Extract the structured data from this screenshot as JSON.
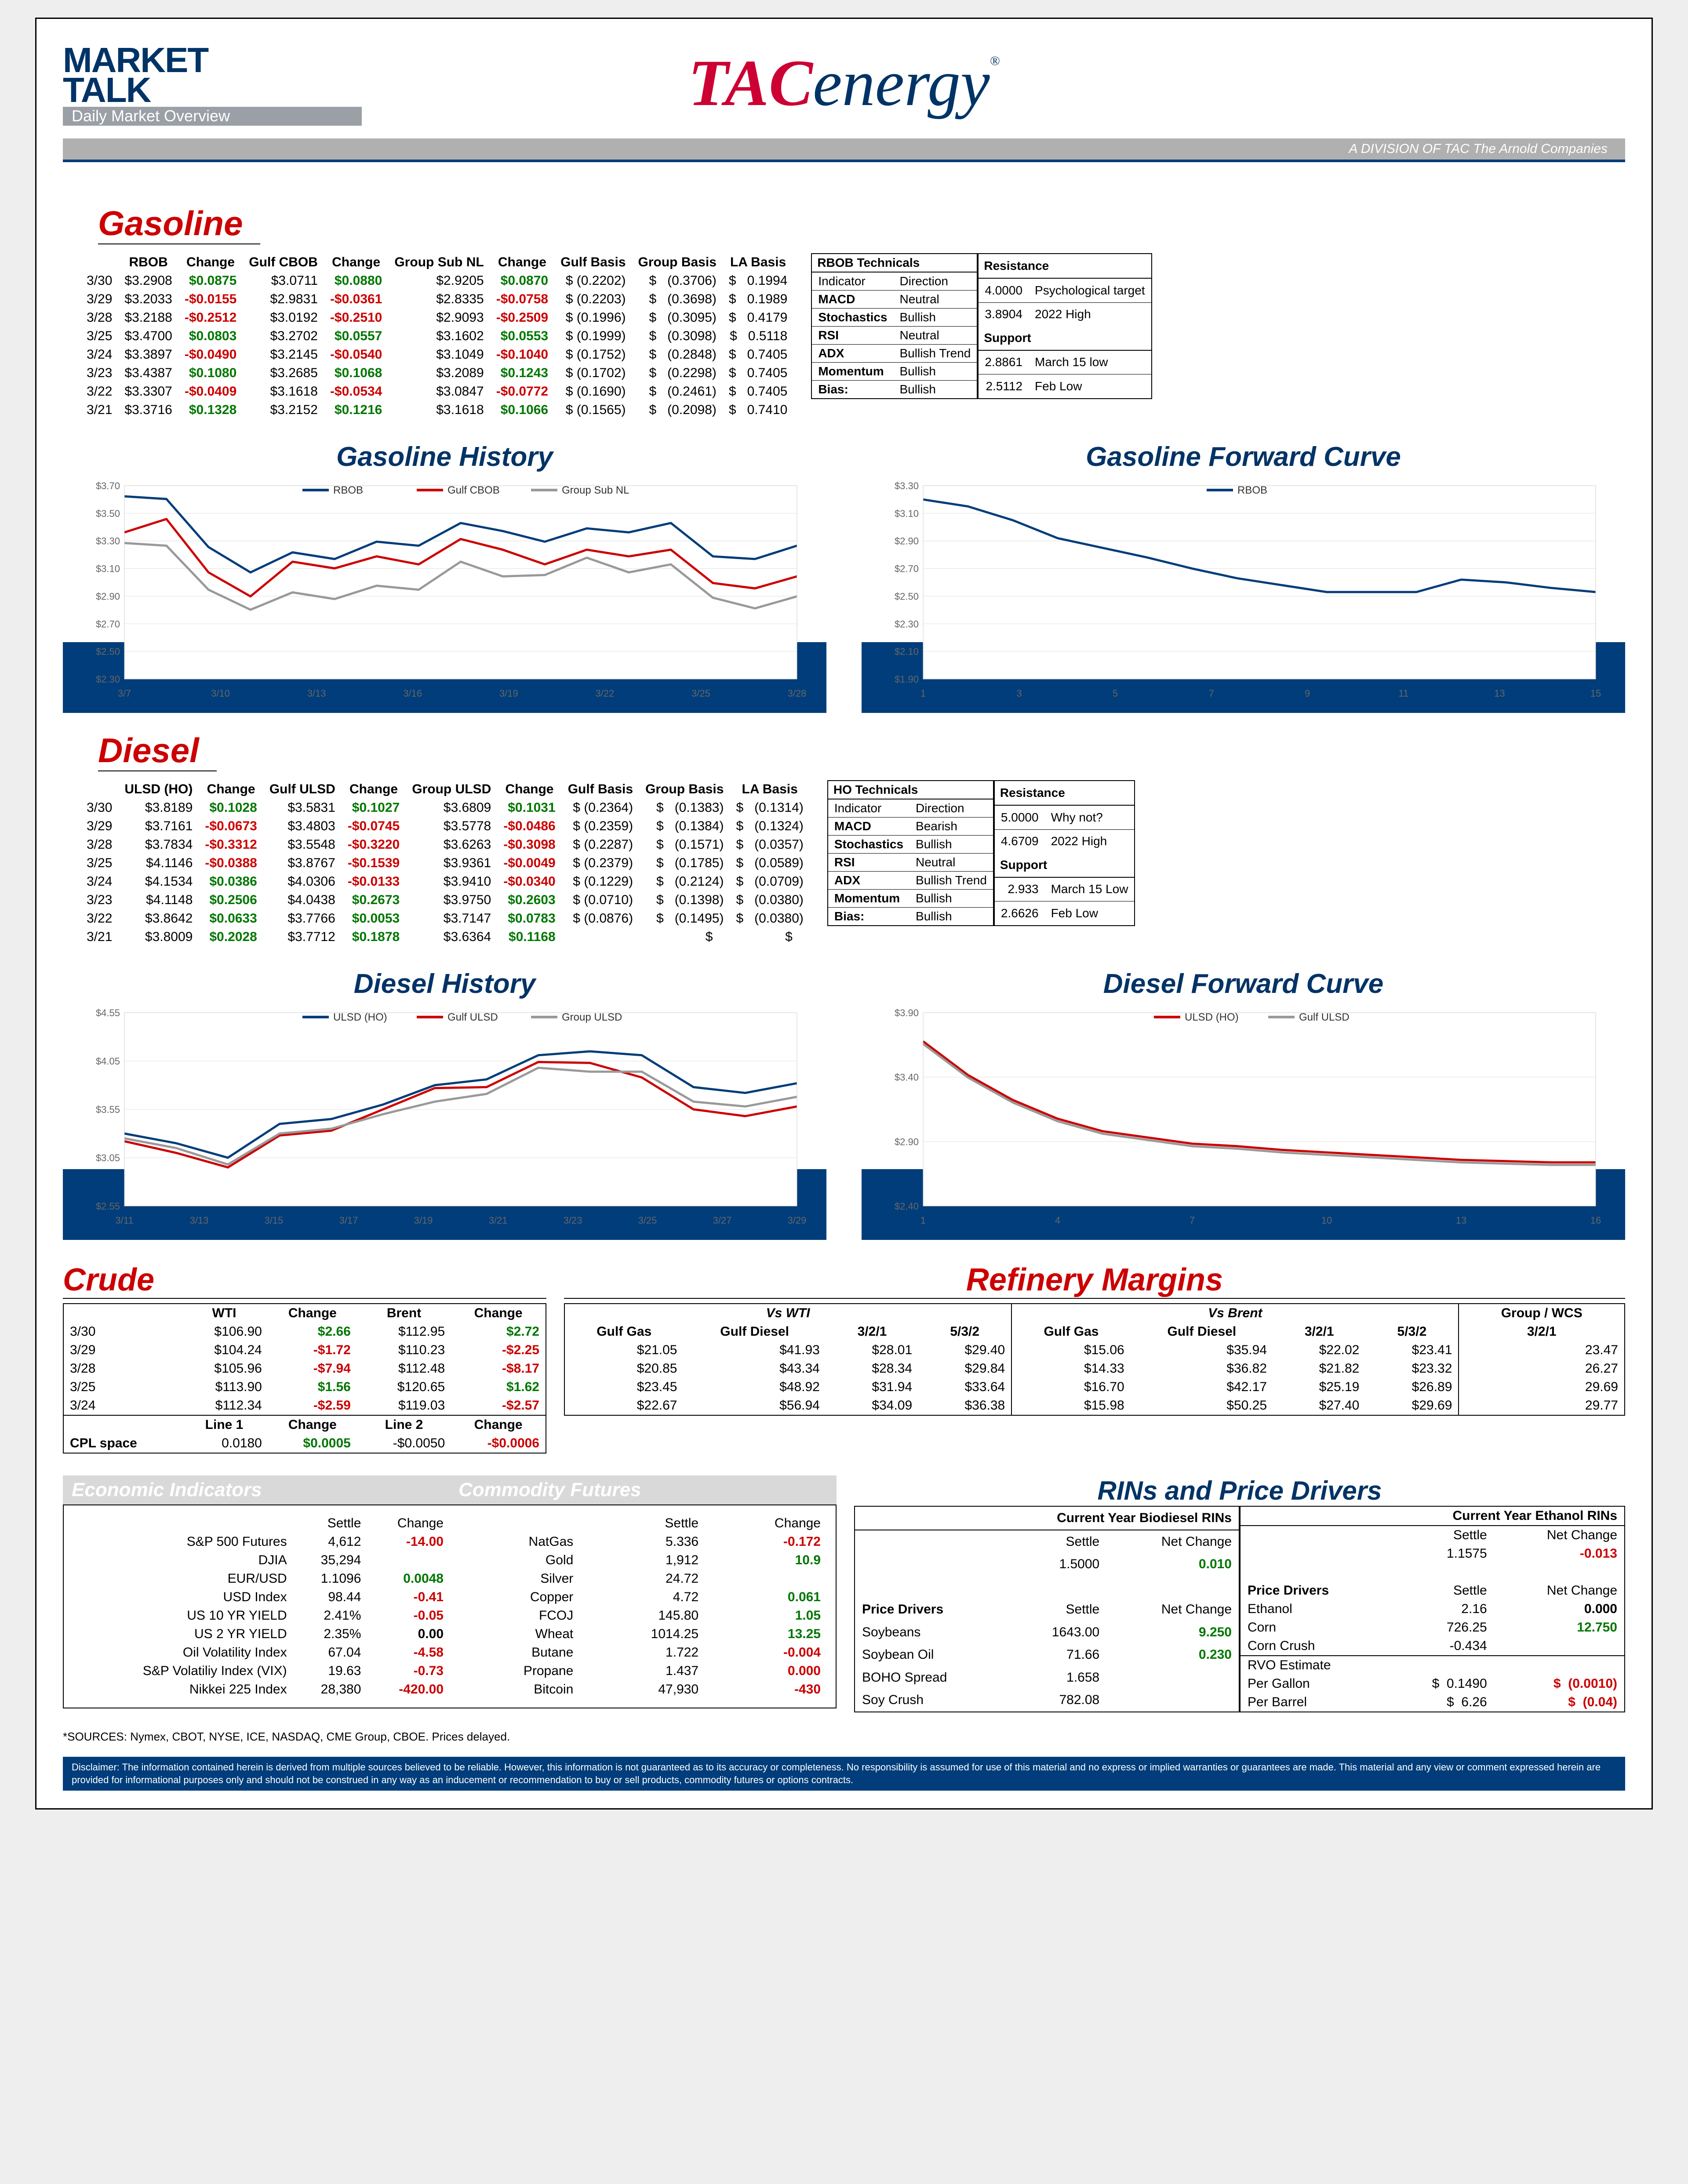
{
  "header": {
    "market": "MARKET",
    "talk": "TALK",
    "daily": "Daily Market Overview",
    "tac_t": "TAC",
    "tac_rest": "energy",
    "division": "A DIVISION OF TAC The Arnold Companies"
  },
  "gasoline": {
    "title": "Gasoline",
    "columns": [
      "",
      "RBOB",
      "Change",
      "Gulf CBOB",
      "Change",
      "Group Sub NL",
      "Change",
      "Gulf Basis",
      "Group Basis",
      "LA Basis"
    ],
    "rows": [
      {
        "d": "3/30",
        "rbob": "$3.2908",
        "c1": "$0.0875",
        "cbob": "$3.0711",
        "c2": "$0.0880",
        "grp": "$2.9205",
        "c3": "$0.0870",
        "gb": "$ (0.2202)",
        "grb": "(0.3706)",
        "la": "0.1994",
        "p1": 1,
        "p2": 1,
        "p3": 1
      },
      {
        "d": "3/29",
        "rbob": "$3.2033",
        "c1": "-$0.0155",
        "cbob": "$2.9831",
        "c2": "-$0.0361",
        "grp": "$2.8335",
        "c3": "-$0.0758",
        "gb": "$ (0.2203)",
        "grb": "(0.3698)",
        "la": "0.1989",
        "p1": 0,
        "p2": 0,
        "p3": 0
      },
      {
        "d": "3/28",
        "rbob": "$3.2188",
        "c1": "-$0.2512",
        "cbob": "$3.0192",
        "c2": "-$0.2510",
        "grp": "$2.9093",
        "c3": "-$0.2509",
        "gb": "$ (0.1996)",
        "grb": "(0.3095)",
        "la": "0.4179",
        "p1": 0,
        "p2": 0,
        "p3": 0
      },
      {
        "d": "3/25",
        "rbob": "$3.4700",
        "c1": "$0.0803",
        "cbob": "$3.2702",
        "c2": "$0.0557",
        "grp": "$3.1602",
        "c3": "$0.0553",
        "gb": "$ (0.1999)",
        "grb": "(0.3098)",
        "la": "0.5118",
        "p1": 1,
        "p2": 1,
        "p3": 1
      },
      {
        "d": "3/24",
        "rbob": "$3.3897",
        "c1": "-$0.0490",
        "cbob": "$3.2145",
        "c2": "-$0.0540",
        "grp": "$3.1049",
        "c3": "-$0.1040",
        "gb": "$ (0.1752)",
        "grb": "(0.2848)",
        "la": "0.7405",
        "p1": 0,
        "p2": 0,
        "p3": 0
      },
      {
        "d": "3/23",
        "rbob": "$3.4387",
        "c1": "$0.1080",
        "cbob": "$3.2685",
        "c2": "$0.1068",
        "grp": "$3.2089",
        "c3": "$0.1243",
        "gb": "$ (0.1702)",
        "grb": "(0.2298)",
        "la": "0.7405",
        "p1": 1,
        "p2": 1,
        "p3": 1
      },
      {
        "d": "3/22",
        "rbob": "$3.3307",
        "c1": "-$0.0409",
        "cbob": "$3.1618",
        "c2": "-$0.0534",
        "grp": "$3.0847",
        "c3": "-$0.0772",
        "gb": "$ (0.1690)",
        "grb": "(0.2461)",
        "la": "0.7405",
        "p1": 0,
        "p2": 0,
        "p3": 0
      },
      {
        "d": "3/21",
        "rbob": "$3.3716",
        "c1": "$0.1328",
        "cbob": "$3.2152",
        "c2": "$0.1216",
        "grp": "$3.1618",
        "c3": "$0.1066",
        "gb": "$ (0.1565)",
        "grb": "(0.2098)",
        "la": "0.7410",
        "p1": 1,
        "p2": 1,
        "p3": 1
      }
    ],
    "tech_title": "RBOB Technicals",
    "tech_cols": [
      "Indicator",
      "Direction"
    ],
    "tech_rows": [
      [
        "MACD",
        "Neutral"
      ],
      [
        "Stochastics",
        "Bullish"
      ],
      [
        "RSI",
        "Neutral"
      ],
      [
        "ADX",
        "Bullish Trend"
      ],
      [
        "Momentum",
        "Bullish"
      ],
      [
        "Bias:",
        "Bullish"
      ]
    ],
    "res_title": "Resistance",
    "res_rows": [
      [
        "4.0000",
        "Psychological target"
      ],
      [
        "3.8904",
        "2022 High"
      ],
      [
        "2.8861",
        "March 15 low"
      ],
      [
        "2.5112",
        "Feb Low"
      ]
    ],
    "sup_title": "Support",
    "history_title": "Gasoline History",
    "fwd_title": "Gasoline Forward Curve",
    "hist_chart": {
      "xlabels": [
        "3/7",
        "3/10",
        "3/13",
        "3/16",
        "3/19",
        "3/22",
        "3/25",
        "3/28"
      ],
      "ylabels": [
        "$2.30",
        "$2.50",
        "$2.70",
        "$2.90",
        "$3.10",
        "$3.30",
        "$3.50",
        "$3.70"
      ],
      "ymin": 2.3,
      "ymax": 3.75,
      "series": [
        {
          "name": "RBOB",
          "color": "#003d7a",
          "vals": [
            3.67,
            3.65,
            3.29,
            3.1,
            3.25,
            3.2,
            3.33,
            3.3,
            3.47,
            3.41,
            3.33,
            3.43,
            3.4,
            3.47,
            3.22,
            3.2,
            3.3
          ]
        },
        {
          "name": "Gulf CBOB",
          "color": "#cc0000",
          "vals": [
            3.4,
            3.5,
            3.1,
            2.92,
            3.18,
            3.13,
            3.22,
            3.16,
            3.35,
            3.27,
            3.16,
            3.27,
            3.22,
            3.27,
            3.02,
            2.98,
            3.07
          ]
        },
        {
          "name": "Group Sub NL",
          "color": "#999999",
          "vals": [
            3.32,
            3.3,
            2.97,
            2.82,
            2.95,
            2.9,
            3.0,
            2.97,
            3.18,
            3.07,
            3.08,
            3.21,
            3.1,
            3.16,
            2.91,
            2.83,
            2.92
          ]
        }
      ]
    },
    "fwd_chart": {
      "xlabels": [
        "1",
        "3",
        "5",
        "7",
        "9",
        "11",
        "13",
        "15"
      ],
      "ylabels": [
        "$1.90",
        "$2.10",
        "$2.30",
        "$2.50",
        "$2.70",
        "$2.90",
        "$3.10",
        "$3.30"
      ],
      "ymin": 1.9,
      "ymax": 3.3,
      "series": [
        {
          "name": "RBOB",
          "color": "#003d7a",
          "vals": [
            3.2,
            3.15,
            3.05,
            2.92,
            2.85,
            2.78,
            2.7,
            2.63,
            2.58,
            2.53,
            2.53,
            2.53,
            2.62,
            2.6,
            2.56,
            2.53
          ]
        }
      ]
    }
  },
  "diesel": {
    "title": "Diesel",
    "columns": [
      "",
      "ULSD (HO)",
      "Change",
      "Gulf ULSD",
      "Change",
      "Group ULSD",
      "Change",
      "Gulf Basis",
      "Group Basis",
      "LA Basis"
    ],
    "rows": [
      {
        "d": "3/30",
        "v1": "$3.8189",
        "c1": "$0.1028",
        "v2": "$3.5831",
        "c2": "$0.1027",
        "v3": "$3.6809",
        "c3": "$0.1031",
        "gb": "$ (0.2364)",
        "grb": "(0.1383)",
        "la": "(0.1314)",
        "p1": 1,
        "p2": 1,
        "p3": 1
      },
      {
        "d": "3/29",
        "v1": "$3.7161",
        "c1": "-$0.0673",
        "v2": "$3.4803",
        "c2": "-$0.0745",
        "v3": "$3.5778",
        "c3": "-$0.0486",
        "gb": "$ (0.2359)",
        "grb": "(0.1384)",
        "la": "(0.1324)",
        "p1": 0,
        "p2": 0,
        "p3": 0
      },
      {
        "d": "3/28",
        "v1": "$3.7834",
        "c1": "-$0.3312",
        "v2": "$3.5548",
        "c2": "-$0.3220",
        "v3": "$3.6263",
        "c3": "-$0.3098",
        "gb": "$ (0.2287)",
        "grb": "(0.1571)",
        "la": "(0.0357)",
        "p1": 0,
        "p2": 0,
        "p3": 0
      },
      {
        "d": "3/25",
        "v1": "$4.1146",
        "c1": "-$0.0388",
        "v2": "$3.8767",
        "c2": "-$0.1539",
        "v3": "$3.9361",
        "c3": "-$0.0049",
        "gb": "$ (0.2379)",
        "grb": "(0.1785)",
        "la": "(0.0589)",
        "p1": 0,
        "p2": 0,
        "p3": 0
      },
      {
        "d": "3/24",
        "v1": "$4.1534",
        "c1": "$0.0386",
        "v2": "$4.0306",
        "c2": "-$0.0133",
        "v3": "$3.9410",
        "c3": "-$0.0340",
        "gb": "$ (0.1229)",
        "grb": "(0.2124)",
        "la": "(0.0709)",
        "p1": 1,
        "p2": 0,
        "p3": 0
      },
      {
        "d": "3/23",
        "v1": "$4.1148",
        "c1": "$0.2506",
        "v2": "$4.0438",
        "c2": "$0.2673",
        "v3": "$3.9750",
        "c3": "$0.2603",
        "gb": "$ (0.0710)",
        "grb": "(0.1398)",
        "la": "(0.0380)",
        "p1": 1,
        "p2": 1,
        "p3": 1
      },
      {
        "d": "3/22",
        "v1": "$3.8642",
        "c1": "$0.0633",
        "v2": "$3.7766",
        "c2": "$0.0053",
        "v3": "$3.7147",
        "c3": "$0.0783",
        "gb": "$ (0.0876)",
        "grb": "(0.1495)",
        "la": "(0.0380)",
        "p1": 1,
        "p2": 1,
        "p3": 1
      },
      {
        "d": "3/21",
        "v1": "$3.8009",
        "c1": "$0.2028",
        "v2": "$3.7712",
        "c2": "$0.1878",
        "v3": "$3.6364",
        "c3": "$0.1168",
        "gb": "",
        "grb": "",
        "la": "",
        "p1": 1,
        "p2": 1,
        "p3": 1
      }
    ],
    "tech_title": "HO Technicals",
    "tech_cols": [
      "Indicator",
      "Direction"
    ],
    "tech_rows": [
      [
        "MACD",
        "Bearish"
      ],
      [
        "Stochastics",
        "Bullish"
      ],
      [
        "RSI",
        "Neutral"
      ],
      [
        "ADX",
        "Bullish Trend"
      ],
      [
        "Momentum",
        "Bullish"
      ],
      [
        "Bias:",
        "Bullish"
      ]
    ],
    "res_title": "Resistance",
    "res_rows": [
      [
        "5.0000",
        "Why not?"
      ],
      [
        "4.6709",
        "2022 High"
      ],
      [
        "2.933",
        "March 15 Low"
      ],
      [
        "2.6626",
        "Feb Low"
      ]
    ],
    "sup_title": "Support",
    "history_title": "Diesel History",
    "fwd_title": "Diesel Forward Curve",
    "hist_chart": {
      "xlabels": [
        "3/11",
        "3/13",
        "3/15",
        "3/17",
        "3/19",
        "3/21",
        "3/23",
        "3/25",
        "3/27",
        "3/29"
      ],
      "ylabels": [
        "$2.55",
        "$3.05",
        "$3.55",
        "$4.05",
        "$4.55"
      ],
      "ymin": 2.55,
      "ymax": 4.55,
      "series": [
        {
          "name": "ULSD (HO)",
          "color": "#003d7a",
          "vals": [
            3.3,
            3.2,
            3.05,
            3.4,
            3.45,
            3.6,
            3.8,
            3.86,
            4.11,
            4.15,
            4.11,
            3.78,
            3.72,
            3.82
          ]
        },
        {
          "name": "Gulf ULSD",
          "color": "#cc0000",
          "vals": [
            3.22,
            3.1,
            2.95,
            3.28,
            3.33,
            3.55,
            3.77,
            3.78,
            4.04,
            4.03,
            3.88,
            3.55,
            3.48,
            3.58
          ]
        },
        {
          "name": "Group ULSD",
          "color": "#999999",
          "vals": [
            3.25,
            3.15,
            2.98,
            3.3,
            3.35,
            3.5,
            3.63,
            3.71,
            3.98,
            3.94,
            3.94,
            3.63,
            3.58,
            3.68
          ]
        }
      ]
    },
    "fwd_chart": {
      "xlabels": [
        "1",
        "4",
        "7",
        "10",
        "13",
        "16"
      ],
      "ylabels": [
        "$2.40",
        "$2.90",
        "$3.40",
        "$3.90"
      ],
      "ymin": 2.4,
      "ymax": 3.95,
      "series": [
        {
          "name": "ULSD (HO)",
          "color": "#cc0000",
          "vals": [
            3.72,
            3.45,
            3.25,
            3.1,
            3.0,
            2.95,
            2.9,
            2.88,
            2.85,
            2.83,
            2.81,
            2.79,
            2.77,
            2.76,
            2.75,
            2.75
          ]
        },
        {
          "name": "Gulf ULSD",
          "color": "#999999",
          "vals": [
            3.7,
            3.43,
            3.23,
            3.08,
            2.98,
            2.93,
            2.88,
            2.86,
            2.83,
            2.81,
            2.79,
            2.77,
            2.75,
            2.74,
            2.73,
            2.73
          ]
        }
      ]
    }
  },
  "crude": {
    "title": "Crude",
    "cols": [
      "",
      "WTI",
      "Change",
      "Brent",
      "Change"
    ],
    "rows": [
      {
        "d": "3/30",
        "wti": "$106.90",
        "c1": "$2.66",
        "br": "$112.95",
        "c2": "$2.72",
        "p1": 1,
        "p2": 1
      },
      {
        "d": "3/29",
        "wti": "$104.24",
        "c1": "-$1.72",
        "br": "$110.23",
        "c2": "-$2.25",
        "p1": 0,
        "p2": 0
      },
      {
        "d": "3/28",
        "wti": "$105.96",
        "c1": "-$7.94",
        "br": "$112.48",
        "c2": "-$8.17",
        "p1": 0,
        "p2": 0
      },
      {
        "d": "3/25",
        "wti": "$113.90",
        "c1": "$1.56",
        "br": "$120.65",
        "c2": "$1.62",
        "p1": 1,
        "p2": 1
      },
      {
        "d": "3/24",
        "wti": "$112.34",
        "c1": "-$2.59",
        "br": "$119.03",
        "c2": "-$2.57",
        "p1": 0,
        "p2": 0
      }
    ],
    "cpl_label": "CPL space",
    "cpl_cols": [
      "",
      "Line 1",
      "Change",
      "Line 2",
      "Change"
    ],
    "cpl": {
      "d": "",
      "l1": "0.0180",
      "c1": "$0.0005",
      "l2": "-$0.0050",
      "c2": "-$0.0006",
      "p1": 1,
      "p2": 0
    }
  },
  "refinery": {
    "title": "Refinery Margins",
    "hdr1": [
      "Vs WTI",
      "Vs Brent",
      "Group / WCS"
    ],
    "cols": [
      "Gulf Gas",
      "Gulf Diesel",
      "3/2/1",
      "5/3/2",
      "Gulf Gas",
      "Gulf Diesel",
      "3/2/1",
      "5/3/2",
      "3/2/1"
    ],
    "rows": [
      [
        "$21.05",
        "$41.93",
        "$28.01",
        "$29.40",
        "$15.06",
        "$35.94",
        "$22.02",
        "$23.41",
        "23.47"
      ],
      [
        "$20.85",
        "$43.34",
        "$28.34",
        "$29.84",
        "$14.33",
        "$36.82",
        "$21.82",
        "$23.32",
        "26.27"
      ],
      [
        "$23.45",
        "$48.92",
        "$31.94",
        "$33.64",
        "$16.70",
        "$42.17",
        "$25.19",
        "$26.89",
        "29.69"
      ],
      [
        "$22.67",
        "$56.94",
        "$34.09",
        "$36.38",
        "$15.98",
        "$50.25",
        "$27.40",
        "$29.69",
        "29.77"
      ]
    ]
  },
  "econ": {
    "title": "Economic Indicators",
    "cols": [
      "",
      "Settle",
      "Change"
    ],
    "rows": [
      [
        "S&P 500 Futures",
        "4,612",
        "-14.00",
        0
      ],
      [
        "DJIA",
        "35,294",
        "",
        2
      ],
      [
        "EUR/USD",
        "1.1096",
        "0.0048",
        1
      ],
      [
        "USD Index",
        "98.44",
        "-0.41",
        0
      ],
      [
        "US 10 YR YIELD",
        "2.41%",
        "-0.05",
        0
      ],
      [
        "US 2 YR YIELD",
        "2.35%",
        "0.00",
        2
      ],
      [
        "Oil Volatility Index",
        "67.04",
        "-4.58",
        0
      ],
      [
        "S&P Volatiliy Index (VIX)",
        "19.63",
        "-0.73",
        0
      ],
      [
        "Nikkei 225 Index",
        "28,380",
        "-420.00",
        0
      ]
    ]
  },
  "commod": {
    "title": "Commodity Futures",
    "cols": [
      "",
      "Settle",
      "Change"
    ],
    "rows": [
      [
        "NatGas",
        "5.336",
        "-0.172",
        0
      ],
      [
        "Gold",
        "1,912",
        "10.9",
        1
      ],
      [
        "Silver",
        "24.72",
        "",
        2
      ],
      [
        "Copper",
        "4.72",
        "0.061",
        1
      ],
      [
        "FCOJ",
        "145.80",
        "1.05",
        1
      ],
      [
        "Wheat",
        "1014.25",
        "13.25",
        1
      ],
      [
        "Butane",
        "1.722",
        "-0.004",
        0
      ],
      [
        "Propane",
        "1.437",
        "0.000",
        0
      ],
      [
        "Bitcoin",
        "47,930",
        "-430",
        0
      ]
    ]
  },
  "rins": {
    "title": "RINs and Price Drivers",
    "bio_title": "Current Year Biodiesel RINs",
    "eth_title": "Current Year Ethanol RINs",
    "bio": {
      "settle": "1.5000",
      "chg": "0.010",
      "p": 1
    },
    "eth": {
      "settle": "1.1575",
      "chg": "-0.013",
      "p": 0
    },
    "drivers_label": "Price Drivers",
    "bio_drivers": [
      [
        "Soybeans",
        "1643.00",
        "9.250",
        1
      ],
      [
        "Soybean Oil",
        "71.66",
        "0.230",
        1
      ],
      [
        "BOHO Spread",
        "1.658",
        "",
        2
      ],
      [
        "Soy Crush",
        "782.08",
        "",
        2
      ]
    ],
    "eth_drivers": [
      [
        "Ethanol",
        "2.16",
        "0.000",
        2
      ],
      [
        "Corn",
        "726.25",
        "12.750",
        1
      ],
      [
        "Corn Crush",
        "-0.434",
        "",
        2
      ]
    ],
    "rvo_title": "RVO Estimate",
    "rvo_rows": [
      [
        "Per Gallon",
        "$",
        "0.1490",
        "$",
        "(0.0010)",
        0
      ],
      [
        "Per Barrel",
        "$",
        "6.26",
        "$",
        "(0.04)",
        0
      ]
    ],
    "settle_label": "Settle",
    "change_label": "Net Change"
  },
  "sources": "*SOURCES: Nymex, CBOT, NYSE, ICE, NASDAQ, CME Group, CBOE.   Prices delayed.",
  "disclaimer": "Disclaimer: The information contained herein is derived from multiple sources believed to be reliable. However, this information is not guaranteed as to its accuracy or completeness. No responsibility is assumed for use of this material and no express or implied warranties or guarantees are made. This material and any view or comment expressed herein are provided for informational purposes only and should not be construed in any way as an inducement or recommendation to buy or sell products, commodity futures or options contracts."
}
